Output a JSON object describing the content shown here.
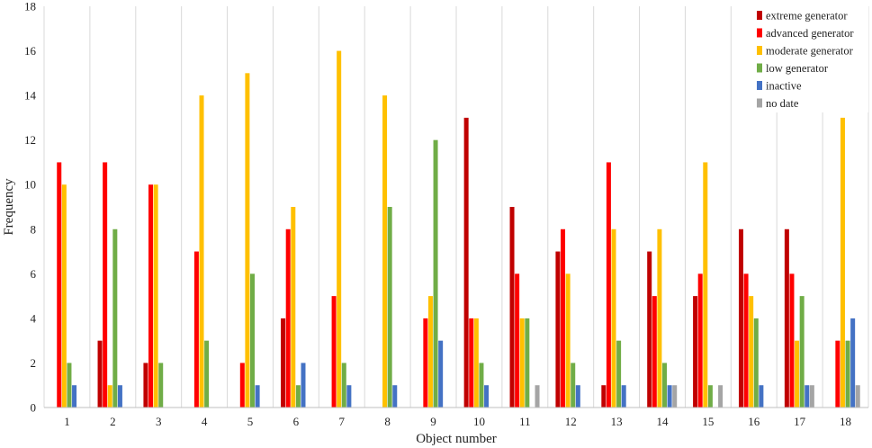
{
  "chart_data": {
    "type": "bar",
    "xlabel": "Object number",
    "ylabel": "Frequency",
    "ylim": [
      0,
      18
    ],
    "yticks": [
      0,
      2,
      4,
      6,
      8,
      10,
      12,
      14,
      16,
      18
    ],
    "grid": "vertical",
    "legend_position": "top-right",
    "categories": [
      "1",
      "2",
      "3",
      "4",
      "5",
      "6",
      "7",
      "8",
      "9",
      "10",
      "11",
      "12",
      "13",
      "14",
      "15",
      "16",
      "17",
      "18"
    ],
    "series": [
      {
        "name": "extreme generator",
        "color": "#c00000",
        "values": [
          0,
          3,
          2,
          0,
          0,
          4,
          0,
          0,
          0,
          13,
          9,
          7,
          1,
          7,
          5,
          8,
          8,
          0
        ]
      },
      {
        "name": "advanced generator",
        "color": "#ff0000",
        "values": [
          11,
          11,
          10,
          7,
          2,
          8,
          5,
          0,
          4,
          4,
          6,
          8,
          11,
          5,
          6,
          6,
          6,
          3
        ]
      },
      {
        "name": "moderate generator",
        "color": "#ffc000",
        "values": [
          10,
          1,
          10,
          14,
          15,
          9,
          16,
          14,
          5,
          4,
          4,
          6,
          8,
          8,
          11,
          5,
          3,
          13
        ]
      },
      {
        "name": "low generator",
        "color": "#70ad47",
        "values": [
          2,
          8,
          2,
          3,
          6,
          1,
          2,
          9,
          12,
          2,
          4,
          2,
          3,
          2,
          1,
          4,
          5,
          3
        ]
      },
      {
        "name": "inactive",
        "color": "#4472c4",
        "values": [
          1,
          1,
          0,
          0,
          1,
          2,
          1,
          1,
          3,
          1,
          0,
          1,
          1,
          1,
          0,
          1,
          1,
          4
        ]
      },
      {
        "name": "no date",
        "color": "#a5a5a5",
        "values": [
          0,
          0,
          0,
          0,
          0,
          0,
          0,
          0,
          0,
          0,
          1,
          0,
          0,
          1,
          1,
          0,
          1,
          1
        ]
      }
    ]
  }
}
